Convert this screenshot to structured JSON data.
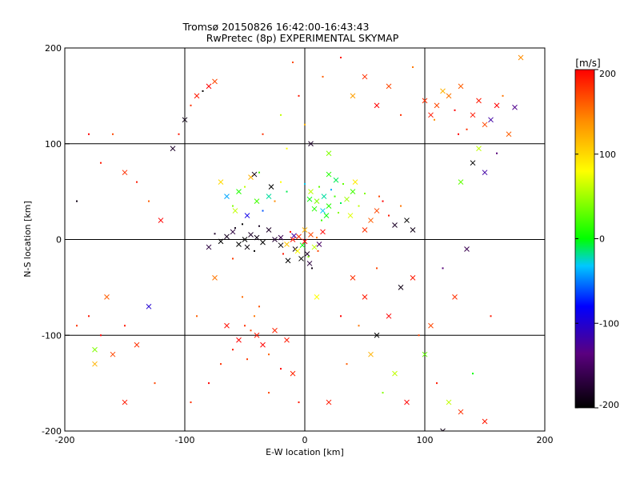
{
  "chart_data": [
    {
      "type": "scatter",
      "title": "Tromsø 20150826 16:42:00-16:43:43",
      "subtitle": "RwPretec (8p) EXPERIMENTAL SKYMAP",
      "xlabel": "E-W location [km]",
      "ylabel": "N-S location [km]",
      "xlim": [
        -200,
        200
      ],
      "ylim": [
        -200,
        200
      ],
      "xticks": [
        "-200",
        "-100",
        "0",
        "100",
        "200"
      ],
      "yticks": [
        "-200",
        "-100",
        "0",
        "100",
        "200"
      ],
      "grid": true,
      "point_symbols": [
        "cross",
        "dot"
      ],
      "points": [
        [
          -40,
          -100,
          190,
          "x"
        ],
        [
          -50,
          -90,
          180,
          "d"
        ],
        [
          -35,
          -110,
          200,
          "x"
        ],
        [
          -45,
          -95,
          170,
          "d"
        ],
        [
          -30,
          -120,
          160,
          "d"
        ],
        [
          -55,
          -105,
          200,
          "x"
        ],
        [
          -42,
          -80,
          150,
          "d"
        ],
        [
          -60,
          -115,
          190,
          "d"
        ],
        [
          -25,
          -95,
          185,
          "x"
        ],
        [
          -48,
          -125,
          175,
          "d"
        ],
        [
          -38,
          -70,
          165,
          "d"
        ],
        [
          -65,
          -90,
          195,
          "x"
        ],
        [
          -20,
          -135,
          200,
          "d"
        ],
        [
          -52,
          -60,
          155,
          "d"
        ],
        [
          -70,
          -130,
          180,
          "d"
        ],
        [
          -15,
          -105,
          190,
          "x"
        ],
        [
          -80,
          -150,
          200,
          "d"
        ],
        [
          -30,
          -160,
          170,
          "d"
        ],
        [
          -10,
          -140,
          185,
          "x"
        ],
        [
          -90,
          -80,
          160,
          "d"
        ],
        [
          -5,
          -170,
          190,
          "d"
        ],
        [
          -75,
          -40,
          150,
          "x"
        ],
        [
          -95,
          -170,
          180,
          "d"
        ],
        [
          -60,
          -20,
          175,
          "d"
        ],
        [
          -50,
          0,
          -200,
          "x"
        ],
        [
          -45,
          5,
          -180,
          "x"
        ],
        [
          -55,
          -5,
          -200,
          "x"
        ],
        [
          -40,
          2,
          -190,
          "x"
        ],
        [
          -60,
          8,
          -170,
          "x"
        ],
        [
          -35,
          -3,
          -200,
          "x"
        ],
        [
          -65,
          3,
          -185,
          "x"
        ],
        [
          -48,
          -8,
          -195,
          "x"
        ],
        [
          -30,
          10,
          -180,
          "x"
        ],
        [
          -70,
          -2,
          -200,
          "x"
        ],
        [
          -25,
          0,
          -175,
          "x"
        ],
        [
          -58,
          12,
          -190,
          "d"
        ],
        [
          -42,
          -12,
          -200,
          "d"
        ],
        [
          -75,
          6,
          -180,
          "d"
        ],
        [
          -20,
          -6,
          -195,
          "x"
        ],
        [
          -38,
          14,
          -185,
          "d"
        ],
        [
          -80,
          -8,
          -170,
          "x"
        ],
        [
          -52,
          16,
          -200,
          "d"
        ],
        [
          -10,
          0,
          190,
          "x"
        ],
        [
          -5,
          3,
          180,
          "x"
        ],
        [
          0,
          -2,
          200,
          "x"
        ],
        [
          5,
          5,
          170,
          "x"
        ],
        [
          -8,
          -10,
          -190,
          "x"
        ],
        [
          2,
          -15,
          -180,
          "x"
        ],
        [
          -15,
          -5,
          110,
          "x"
        ],
        [
          8,
          -8,
          60,
          "x"
        ],
        [
          -3,
          -20,
          -200,
          "x"
        ],
        [
          10,
          2,
          150,
          "d"
        ],
        [
          -12,
          8,
          200,
          "d"
        ],
        [
          4,
          -25,
          -170,
          "x"
        ],
        [
          -6,
          -12,
          80,
          "x"
        ],
        [
          12,
          -5,
          -150,
          "x"
        ],
        [
          -18,
          -15,
          190,
          "d"
        ],
        [
          0,
          10,
          120,
          "x"
        ],
        [
          6,
          -30,
          -190,
          "d"
        ],
        [
          -20,
          2,
          -160,
          "x"
        ],
        [
          15,
          8,
          200,
          "x"
        ],
        [
          -2,
          -6,
          0,
          "x"
        ],
        [
          3,
          -18,
          40,
          "d"
        ],
        [
          -9,
          4,
          -120,
          "x"
        ],
        [
          11,
          -12,
          170,
          "d"
        ],
        [
          -14,
          -22,
          -200,
          "x"
        ],
        [
          10,
          40,
          40,
          "x"
        ],
        [
          20,
          35,
          10,
          "x"
        ],
        [
          15,
          30,
          -30,
          "x"
        ],
        [
          25,
          45,
          20,
          "d"
        ],
        [
          5,
          50,
          60,
          "x"
        ],
        [
          30,
          38,
          -10,
          "d"
        ],
        [
          18,
          25,
          0,
          "x"
        ],
        [
          12,
          55,
          30,
          "d"
        ],
        [
          35,
          42,
          50,
          "x"
        ],
        [
          22,
          52,
          -40,
          "d"
        ],
        [
          8,
          32,
          10,
          "x"
        ],
        [
          28,
          28,
          40,
          "d"
        ],
        [
          40,
          50,
          20,
          "x"
        ],
        [
          16,
          45,
          -20,
          "x"
        ],
        [
          32,
          58,
          30,
          "d"
        ],
        [
          4,
          42,
          0,
          "x"
        ],
        [
          45,
          35,
          60,
          "d"
        ],
        [
          26,
          62,
          -10,
          "x"
        ],
        [
          14,
          20,
          20,
          "d"
        ],
        [
          38,
          25,
          70,
          "x"
        ],
        [
          50,
          48,
          40,
          "d"
        ],
        [
          20,
          68,
          10,
          "x"
        ],
        [
          0,
          58,
          -30,
          "d"
        ],
        [
          42,
          60,
          90,
          "x"
        ],
        [
          -40,
          40,
          20,
          "x"
        ],
        [
          -50,
          55,
          60,
          "d"
        ],
        [
          -30,
          45,
          -20,
          "x"
        ],
        [
          -60,
          35,
          40,
          "d"
        ],
        [
          -45,
          65,
          120,
          "x"
        ],
        [
          -35,
          30,
          -60,
          "d"
        ],
        [
          -55,
          50,
          10,
          "x"
        ],
        [
          -20,
          60,
          80,
          "d"
        ],
        [
          -65,
          45,
          -40,
          "x"
        ],
        [
          -25,
          40,
          140,
          "d"
        ],
        [
          -48,
          25,
          -90,
          "x"
        ],
        [
          -38,
          70,
          20,
          "d"
        ],
        [
          -70,
          60,
          100,
          "x"
        ],
        [
          -15,
          50,
          -10,
          "d"
        ],
        [
          -58,
          30,
          60,
          "x"
        ],
        [
          -28,
          55,
          -200,
          "x"
        ],
        [
          -42,
          68,
          -190,
          "x"
        ],
        [
          60,
          30,
          170,
          "x"
        ],
        [
          70,
          25,
          190,
          "d"
        ],
        [
          55,
          20,
          160,
          "x"
        ],
        [
          65,
          40,
          200,
          "d"
        ],
        [
          75,
          15,
          -180,
          "x"
        ],
        [
          80,
          35,
          150,
          "d"
        ],
        [
          50,
          10,
          180,
          "x"
        ],
        [
          85,
          20,
          -200,
          "x"
        ],
        [
          62,
          45,
          170,
          "d"
        ],
        [
          90,
          10,
          -190,
          "x"
        ],
        [
          110,
          140,
          170,
          "x"
        ],
        [
          120,
          150,
          150,
          "x"
        ],
        [
          105,
          130,
          190,
          "x"
        ],
        [
          115,
          155,
          120,
          "x"
        ],
        [
          125,
          135,
          200,
          "d"
        ],
        [
          100,
          145,
          180,
          "x"
        ],
        [
          130,
          160,
          160,
          "x"
        ],
        [
          108,
          125,
          140,
          "d"
        ],
        [
          140,
          130,
          190,
          "x"
        ],
        [
          150,
          120,
          170,
          "x"
        ],
        [
          160,
          140,
          200,
          "x"
        ],
        [
          135,
          115,
          180,
          "d"
        ],
        [
          155,
          125,
          -120,
          "x"
        ],
        [
          165,
          150,
          150,
          "d"
        ],
        [
          145,
          145,
          190,
          "x"
        ],
        [
          175,
          138,
          -130,
          "x"
        ],
        [
          180,
          190,
          140,
          "x"
        ],
        [
          128,
          110,
          200,
          "d"
        ],
        [
          50,
          170,
          180,
          "x"
        ],
        [
          30,
          190,
          190,
          "d"
        ],
        [
          70,
          160,
          170,
          "x"
        ],
        [
          90,
          180,
          150,
          "d"
        ],
        [
          60,
          140,
          200,
          "x"
        ],
        [
          40,
          150,
          130,
          "x"
        ],
        [
          80,
          130,
          180,
          "d"
        ],
        [
          -90,
          150,
          190,
          "x"
        ],
        [
          -80,
          160,
          200,
          "x"
        ],
        [
          -95,
          140,
          180,
          "d"
        ],
        [
          -75,
          165,
          170,
          "x"
        ],
        [
          -85,
          155,
          -200,
          "d"
        ],
        [
          -100,
          125,
          -190,
          "x"
        ],
        [
          -110,
          95,
          -180,
          "x"
        ],
        [
          -105,
          110,
          190,
          "d"
        ],
        [
          -140,
          -110,
          180,
          "x"
        ],
        [
          -150,
          -90,
          190,
          "d"
        ],
        [
          -160,
          -120,
          170,
          "x"
        ],
        [
          -170,
          -100,
          200,
          "d"
        ],
        [
          -175,
          -130,
          120,
          "x"
        ],
        [
          -180,
          -80,
          190,
          "d"
        ],
        [
          -165,
          -60,
          160,
          "x"
        ],
        [
          -130,
          -70,
          -100,
          "x"
        ],
        [
          -125,
          -150,
          170,
          "d"
        ],
        [
          -150,
          -170,
          190,
          "x"
        ],
        [
          -190,
          -90,
          180,
          "d"
        ],
        [
          -175,
          -115,
          40,
          "x"
        ],
        [
          -170,
          80,
          190,
          "d"
        ],
        [
          -180,
          110,
          200,
          "d"
        ],
        [
          -150,
          70,
          180,
          "x"
        ],
        [
          -160,
          110,
          170,
          "d"
        ],
        [
          -140,
          60,
          190,
          "d"
        ],
        [
          -130,
          40,
          160,
          "d"
        ],
        [
          -190,
          40,
          -190,
          "d"
        ],
        [
          -120,
          20,
          200,
          "x"
        ],
        [
          40,
          -40,
          180,
          "x"
        ],
        [
          50,
          -60,
          190,
          "x"
        ],
        [
          60,
          -30,
          170,
          "d"
        ],
        [
          70,
          -80,
          200,
          "x"
        ],
        [
          80,
          -50,
          -190,
          "x"
        ],
        [
          45,
          -90,
          150,
          "d"
        ],
        [
          90,
          -40,
          190,
          "x"
        ],
        [
          55,
          -120,
          120,
          "x"
        ],
        [
          75,
          -140,
          60,
          "x"
        ],
        [
          95,
          -100,
          170,
          "d"
        ],
        [
          65,
          -160,
          40,
          "d"
        ],
        [
          85,
          -170,
          200,
          "x"
        ],
        [
          100,
          -120,
          30,
          "x"
        ],
        [
          110,
          -150,
          190,
          "d"
        ],
        [
          120,
          -170,
          60,
          "x"
        ],
        [
          130,
          -180,
          180,
          "x"
        ],
        [
          140,
          -140,
          0,
          "d"
        ],
        [
          105,
          -90,
          170,
          "x"
        ],
        [
          115,
          -200,
          -190,
          "x"
        ],
        [
          150,
          -190,
          190,
          "x"
        ],
        [
          60,
          -100,
          -200,
          "x"
        ],
        [
          35,
          -130,
          160,
          "d"
        ],
        [
          20,
          -170,
          190,
          "x"
        ],
        [
          10,
          -60,
          80,
          "x"
        ],
        [
          30,
          -80,
          200,
          "d"
        ],
        [
          150,
          70,
          -120,
          "x"
        ],
        [
          160,
          90,
          -140,
          "d"
        ],
        [
          170,
          110,
          160,
          "x"
        ],
        [
          140,
          80,
          -200,
          "x"
        ],
        [
          130,
          60,
          30,
          "x"
        ],
        [
          145,
          95,
          60,
          "x"
        ],
        [
          135,
          -10,
          -160,
          "x"
        ],
        [
          155,
          -80,
          190,
          "d"
        ],
        [
          125,
          -60,
          180,
          "x"
        ],
        [
          115,
          -30,
          -140,
          "d"
        ],
        [
          -5,
          150,
          190,
          "d"
        ],
        [
          -10,
          185,
          170,
          "d"
        ],
        [
          15,
          170,
          160,
          "d"
        ],
        [
          -20,
          130,
          60,
          "d"
        ],
        [
          0,
          120,
          120,
          "d"
        ],
        [
          5,
          100,
          -180,
          "x"
        ],
        [
          -15,
          95,
          80,
          "d"
        ],
        [
          20,
          90,
          40,
          "x"
        ],
        [
          -35,
          110,
          180,
          "d"
        ]
      ]
    },
    {
      "type": "heatmap",
      "title": "[m/s]",
      "ylim": [
        -200,
        200
      ],
      "ticks": [
        "200",
        "100",
        "0",
        "-100",
        "-200"
      ]
    }
  ]
}
